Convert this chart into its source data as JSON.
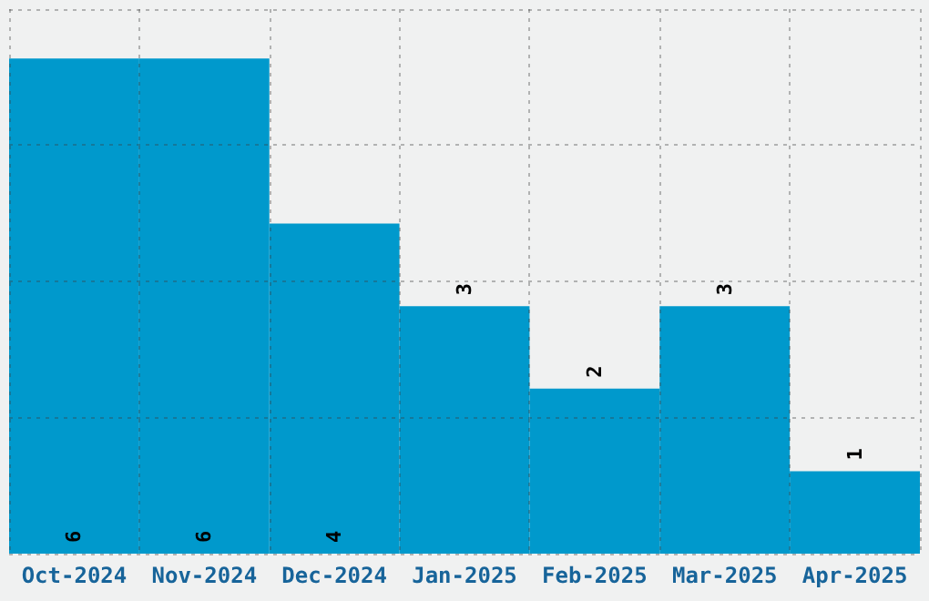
{
  "chart_data": {
    "type": "bar",
    "categories": [
      "Oct-2024",
      "Nov-2024",
      "Dec-2024",
      "Jan-2025",
      "Feb-2025",
      "Mar-2025",
      "Apr-2025"
    ],
    "values": [
      6,
      6,
      4,
      3,
      2,
      3,
      1
    ],
    "color": "#0099cc",
    "ylim": [
      0,
      6.6
    ],
    "yticks": [
      {
        "value": 0,
        "label": null
      },
      {
        "value": 1.65,
        "label": null
      },
      {
        "value": 3.3,
        "label": null
      },
      {
        "value": 4.95,
        "label": null
      },
      {
        "value": 6.6,
        "label": null
      }
    ],
    "tick_labels": "x",
    "grid": true,
    "data_labels": true
  }
}
